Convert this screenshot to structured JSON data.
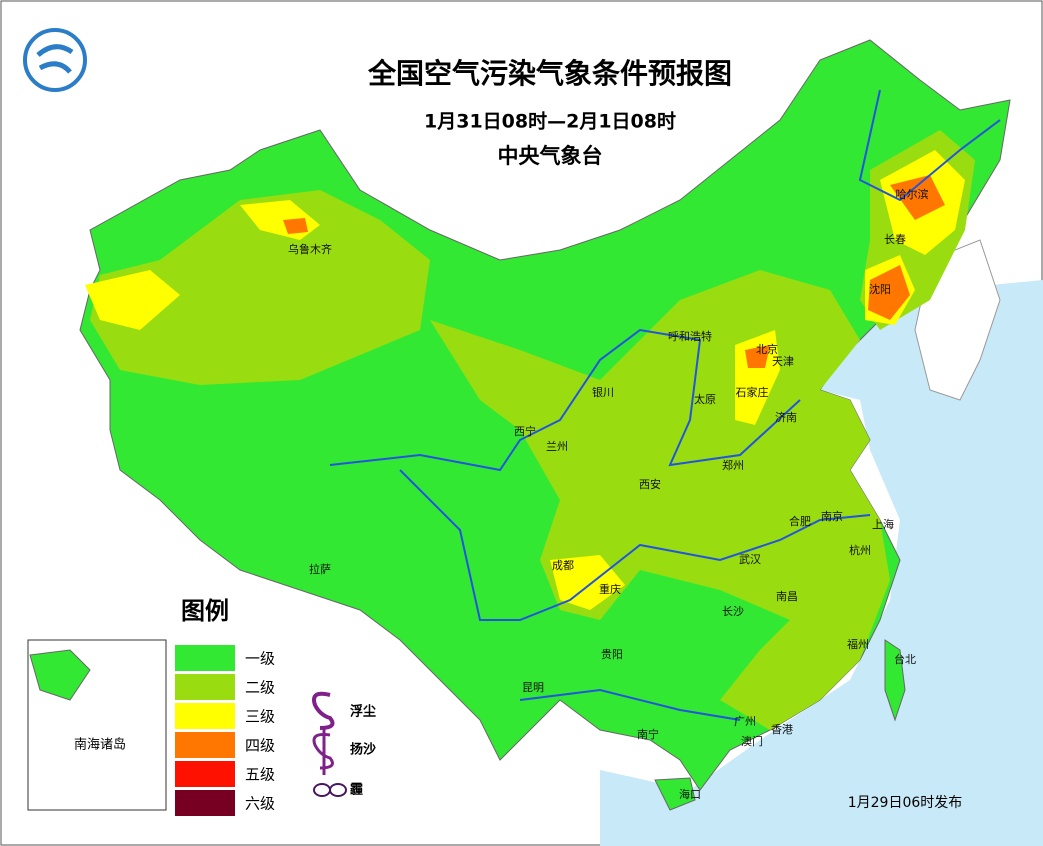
{
  "header": {
    "title": "全国空气污染气象条件预报图",
    "period": "1月31日08时—2月1日08时",
    "issuer": "中央气象台"
  },
  "legend": {
    "title": "图例",
    "levels": [
      {
        "label": "一级",
        "color": "#33e833"
      },
      {
        "label": "二级",
        "color": "#99dd11"
      },
      {
        "label": "三级",
        "color": "#ffff00"
      },
      {
        "label": "四级",
        "color": "#ff7700"
      },
      {
        "label": "五级",
        "color": "#ff1100"
      },
      {
        "label": "六级",
        "color": "#770022"
      }
    ],
    "symbols": [
      "浮尘",
      "扬沙",
      "霾"
    ]
  },
  "inset": {
    "label": "南海诸岛"
  },
  "cities": [
    "乌鲁木齐",
    "哈尔滨",
    "长春",
    "沈阳",
    "呼和浩特",
    "北京",
    "天津",
    "石家庄",
    "太原",
    "济南",
    "银川",
    "西宁",
    "兰州",
    "郑州",
    "西安",
    "合肥",
    "南京",
    "上海",
    "杭州",
    "成都",
    "重庆",
    "武汉",
    "拉萨",
    "长沙",
    "南昌",
    "贵阳",
    "福州",
    "台北",
    "昆明",
    "南宁",
    "广州",
    "香港",
    "澳门",
    "海口"
  ],
  "footer": {
    "issued": "1月29日06时发布"
  }
}
